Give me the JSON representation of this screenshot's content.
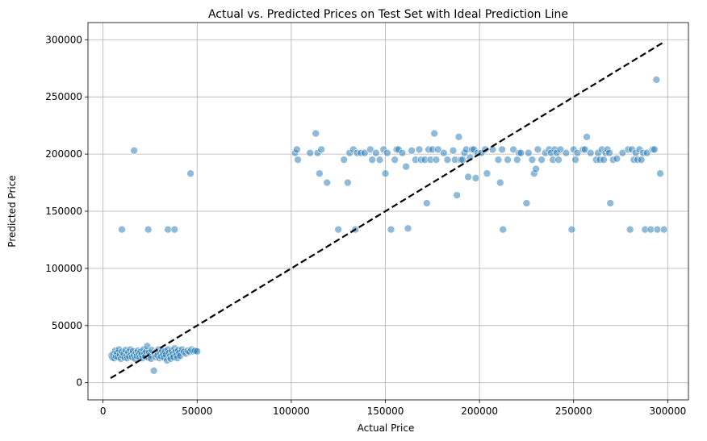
{
  "chart_data": {
    "type": "scatter",
    "title": "Actual vs. Predicted Prices on Test Set with Ideal Prediction Line",
    "xlabel": "Actual Price",
    "ylabel": "Predicted Price",
    "xlim": [
      -8000,
      311000
    ],
    "ylim": [
      -15000,
      315000
    ],
    "xticks": [
      0,
      50000,
      100000,
      150000,
      200000,
      250000,
      300000
    ],
    "yticks": [
      0,
      50000,
      100000,
      150000,
      200000,
      250000,
      300000
    ],
    "xtick_labels": [
      "0",
      "50000",
      "100000",
      "150000",
      "200000",
      "250000",
      "300000"
    ],
    "ytick_labels": [
      "0",
      "50000",
      "100000",
      "150000",
      "200000",
      "250000",
      "300000"
    ],
    "grid": true,
    "point_color": "#1f77b4",
    "line_color": "#000000",
    "series": [
      {
        "type": "scatter",
        "points": [
          [
            4500,
            24000
          ],
          [
            5000,
            22000
          ],
          [
            5500,
            25000
          ],
          [
            6000,
            21500
          ],
          [
            6500,
            28000
          ],
          [
            7000,
            23000
          ],
          [
            7500,
            26000
          ],
          [
            8000,
            22500
          ],
          [
            8500,
            29000
          ],
          [
            9000,
            24500
          ],
          [
            9500,
            21000
          ],
          [
            10000,
            27000
          ],
          [
            10500,
            23500
          ],
          [
            11000,
            25500
          ],
          [
            11500,
            22000
          ],
          [
            12000,
            28500
          ],
          [
            12500,
            24000
          ],
          [
            13000,
            21500
          ],
          [
            13500,
            26500
          ],
          [
            14000,
            23000
          ],
          [
            14500,
            29000
          ],
          [
            15000,
            25000
          ],
          [
            15500,
            22500
          ],
          [
            16000,
            27500
          ],
          [
            16500,
            24000
          ],
          [
            17000,
            21000
          ],
          [
            17500,
            26000
          ],
          [
            18000,
            23500
          ],
          [
            18500,
            28000
          ],
          [
            19000,
            25000
          ],
          [
            19500,
            22000
          ],
          [
            20000,
            27000
          ],
          [
            20500,
            24500
          ],
          [
            21000,
            21500
          ],
          [
            21500,
            29000
          ],
          [
            22000,
            25500
          ],
          [
            22500,
            23000
          ],
          [
            23000,
            27500
          ],
          [
            23500,
            32000
          ],
          [
            24000,
            22000
          ],
          [
            24500,
            26500
          ],
          [
            25000,
            24000
          ],
          [
            25500,
            21000
          ],
          [
            26000,
            28500
          ],
          [
            27000,
            10500
          ],
          [
            27500,
            25000
          ],
          [
            28000,
            22500
          ],
          [
            28500,
            27000
          ],
          [
            29000,
            24000
          ],
          [
            29500,
            29000
          ],
          [
            30000,
            21500
          ],
          [
            30500,
            26000
          ],
          [
            31000,
            23000
          ],
          [
            31500,
            28000
          ],
          [
            32000,
            25000
          ],
          [
            32500,
            22000
          ],
          [
            33000,
            27500
          ],
          [
            33500,
            24500
          ],
          [
            34000,
            19500
          ],
          [
            34500,
            29000
          ],
          [
            35000,
            26000
          ],
          [
            35500,
            23000
          ],
          [
            36000,
            21000
          ],
          [
            36500,
            28000
          ],
          [
            37000,
            25000
          ],
          [
            37500,
            22500
          ],
          [
            38000,
            30000
          ],
          [
            38500,
            27000
          ],
          [
            39000,
            24000
          ],
          [
            39500,
            21500
          ],
          [
            40000,
            28500
          ],
          [
            40500,
            26000
          ],
          [
            41000,
            23500
          ],
          [
            42000,
            29000
          ],
          [
            43000,
            27000
          ],
          [
            44000,
            25500
          ],
          [
            45000,
            28000
          ],
          [
            46000,
            27000
          ],
          [
            47000,
            29000
          ],
          [
            48000,
            27500
          ],
          [
            49000,
            28000
          ],
          [
            50000,
            27500
          ],
          [
            10000,
            134000
          ],
          [
            16500,
            203000
          ],
          [
            24000,
            134000
          ],
          [
            34500,
            134000
          ],
          [
            38000,
            134000
          ],
          [
            46500,
            183000
          ],
          [
            102000,
            201000
          ],
          [
            103000,
            204000
          ],
          [
            103500,
            195000
          ],
          [
            110000,
            201000
          ],
          [
            113000,
            218000
          ],
          [
            114000,
            201000
          ],
          [
            115000,
            183000
          ],
          [
            116000,
            204000
          ],
          [
            119000,
            175000
          ],
          [
            125000,
            134000
          ],
          [
            128000,
            195000
          ],
          [
            130000,
            175000
          ],
          [
            131000,
            201000
          ],
          [
            133000,
            204000
          ],
          [
            134000,
            134000
          ],
          [
            135000,
            201000
          ],
          [
            137000,
            201000
          ],
          [
            139000,
            201000
          ],
          [
            142000,
            204000
          ],
          [
            143000,
            195000
          ],
          [
            145000,
            201000
          ],
          [
            147000,
            195000
          ],
          [
            149000,
            204000
          ],
          [
            150000,
            183000
          ],
          [
            151000,
            201000
          ],
          [
            153000,
            134000
          ],
          [
            155000,
            195000
          ],
          [
            156000,
            204000
          ],
          [
            157000,
            204000
          ],
          [
            159000,
            201000
          ],
          [
            161000,
            189000
          ],
          [
            162000,
            135000
          ],
          [
            164000,
            203000
          ],
          [
            166000,
            195000
          ],
          [
            168000,
            204000
          ],
          [
            169000,
            195000
          ],
          [
            171000,
            195000
          ],
          [
            172000,
            157000
          ],
          [
            173000,
            204000
          ],
          [
            174000,
            195000
          ],
          [
            175000,
            204000
          ],
          [
            176000,
            218000
          ],
          [
            177000,
            195000
          ],
          [
            178000,
            204000
          ],
          [
            181000,
            201000
          ],
          [
            183000,
            195000
          ],
          [
            186000,
            203000
          ],
          [
            187000,
            195000
          ],
          [
            188000,
            164000
          ],
          [
            189000,
            215000
          ],
          [
            190000,
            195000
          ],
          [
            191000,
            195000
          ],
          [
            192000,
            201000
          ],
          [
            193000,
            204000
          ],
          [
            194000,
            180000
          ],
          [
            195000,
            197000
          ],
          [
            196000,
            204000
          ],
          [
            197000,
            204000
          ],
          [
            198000,
            179000
          ],
          [
            199000,
            201000
          ],
          [
            201000,
            201000
          ],
          [
            203000,
            204000
          ],
          [
            204000,
            183000
          ],
          [
            207000,
            204000
          ],
          [
            210000,
            195000
          ],
          [
            211000,
            175000
          ],
          [
            212000,
            204000
          ],
          [
            212500,
            134000
          ],
          [
            215000,
            195000
          ],
          [
            218000,
            204000
          ],
          [
            220000,
            195000
          ],
          [
            221000,
            201000
          ],
          [
            222000,
            201000
          ],
          [
            225000,
            157000
          ],
          [
            226000,
            201000
          ],
          [
            228000,
            195000
          ],
          [
            229000,
            183000
          ],
          [
            230000,
            187000
          ],
          [
            231000,
            204000
          ],
          [
            233000,
            195000
          ],
          [
            235000,
            201000
          ],
          [
            237000,
            204000
          ],
          [
            238000,
            201000
          ],
          [
            239000,
            195000
          ],
          [
            240000,
            204000
          ],
          [
            241000,
            201000
          ],
          [
            242000,
            195000
          ],
          [
            243000,
            204000
          ],
          [
            246000,
            201000
          ],
          [
            249000,
            134000
          ],
          [
            250000,
            204000
          ],
          [
            251000,
            195000
          ],
          [
            252000,
            201000
          ],
          [
            255000,
            204000
          ],
          [
            256000,
            204000
          ],
          [
            257000,
            215000
          ],
          [
            259000,
            201000
          ],
          [
            262000,
            195000
          ],
          [
            263000,
            201000
          ],
          [
            264000,
            195000
          ],
          [
            265000,
            204000
          ],
          [
            266000,
            195000
          ],
          [
            267000,
            201000
          ],
          [
            268000,
            204000
          ],
          [
            269000,
            201000
          ],
          [
            269500,
            157000
          ],
          [
            271000,
            195000
          ],
          [
            273000,
            196000
          ],
          [
            276000,
            201000
          ],
          [
            279000,
            204000
          ],
          [
            280000,
            134000
          ],
          [
            281000,
            204000
          ],
          [
            282000,
            195000
          ],
          [
            283000,
            201000
          ],
          [
            284000,
            195000
          ],
          [
            285000,
            204000
          ],
          [
            286000,
            195000
          ],
          [
            287000,
            201000
          ],
          [
            288000,
            134000
          ],
          [
            289000,
            201000
          ],
          [
            291000,
            134000
          ],
          [
            292000,
            204000
          ],
          [
            293000,
            204000
          ],
          [
            294000,
            265000
          ],
          [
            294500,
            134000
          ],
          [
            296000,
            183000
          ],
          [
            298000,
            134000
          ]
        ]
      },
      {
        "type": "line",
        "style": "dashed",
        "points": [
          [
            4000,
            4000
          ],
          [
            298000,
            298000
          ]
        ]
      }
    ]
  }
}
